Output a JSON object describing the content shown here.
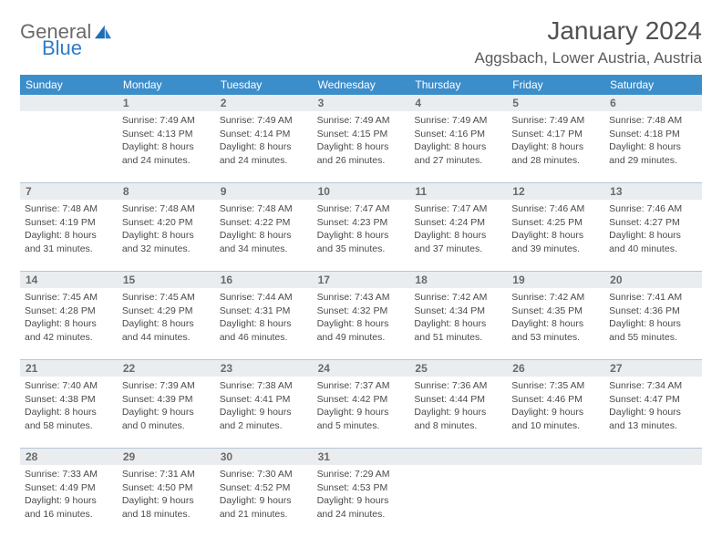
{
  "brand": {
    "name_part1": "General",
    "name_part2": "Blue"
  },
  "title": "January 2024",
  "location": "Aggsbach, Lower Austria, Austria",
  "colors": {
    "header_bg": "#3c8ecb",
    "header_text": "#ffffff",
    "daynum_bg": "#e9edf0",
    "daynum_text": "#6a6a6a",
    "body_text": "#4a4a4a",
    "title_text": "#515151",
    "divider": "#b8c6d4",
    "logo_gray": "#6a6a6a",
    "logo_blue": "#2d7ccb"
  },
  "typography": {
    "body_fontsize_pt": 8,
    "daynum_fontsize_pt": 9,
    "dow_fontsize_pt": 9,
    "title_fontsize_pt": 21,
    "location_fontsize_pt": 13
  },
  "dow": [
    "Sunday",
    "Monday",
    "Tuesday",
    "Wednesday",
    "Thursday",
    "Friday",
    "Saturday"
  ],
  "weeks": [
    [
      {
        "n": "",
        "lines": []
      },
      {
        "n": "1",
        "lines": [
          "Sunrise: 7:49 AM",
          "Sunset: 4:13 PM",
          "Daylight: 8 hours",
          "and 24 minutes."
        ]
      },
      {
        "n": "2",
        "lines": [
          "Sunrise: 7:49 AM",
          "Sunset: 4:14 PM",
          "Daylight: 8 hours",
          "and 24 minutes."
        ]
      },
      {
        "n": "3",
        "lines": [
          "Sunrise: 7:49 AM",
          "Sunset: 4:15 PM",
          "Daylight: 8 hours",
          "and 26 minutes."
        ]
      },
      {
        "n": "4",
        "lines": [
          "Sunrise: 7:49 AM",
          "Sunset: 4:16 PM",
          "Daylight: 8 hours",
          "and 27 minutes."
        ]
      },
      {
        "n": "5",
        "lines": [
          "Sunrise: 7:49 AM",
          "Sunset: 4:17 PM",
          "Daylight: 8 hours",
          "and 28 minutes."
        ]
      },
      {
        "n": "6",
        "lines": [
          "Sunrise: 7:48 AM",
          "Sunset: 4:18 PM",
          "Daylight: 8 hours",
          "and 29 minutes."
        ]
      }
    ],
    [
      {
        "n": "7",
        "lines": [
          "Sunrise: 7:48 AM",
          "Sunset: 4:19 PM",
          "Daylight: 8 hours",
          "and 31 minutes."
        ]
      },
      {
        "n": "8",
        "lines": [
          "Sunrise: 7:48 AM",
          "Sunset: 4:20 PM",
          "Daylight: 8 hours",
          "and 32 minutes."
        ]
      },
      {
        "n": "9",
        "lines": [
          "Sunrise: 7:48 AM",
          "Sunset: 4:22 PM",
          "Daylight: 8 hours",
          "and 34 minutes."
        ]
      },
      {
        "n": "10",
        "lines": [
          "Sunrise: 7:47 AM",
          "Sunset: 4:23 PM",
          "Daylight: 8 hours",
          "and 35 minutes."
        ]
      },
      {
        "n": "11",
        "lines": [
          "Sunrise: 7:47 AM",
          "Sunset: 4:24 PM",
          "Daylight: 8 hours",
          "and 37 minutes."
        ]
      },
      {
        "n": "12",
        "lines": [
          "Sunrise: 7:46 AM",
          "Sunset: 4:25 PM",
          "Daylight: 8 hours",
          "and 39 minutes."
        ]
      },
      {
        "n": "13",
        "lines": [
          "Sunrise: 7:46 AM",
          "Sunset: 4:27 PM",
          "Daylight: 8 hours",
          "and 40 minutes."
        ]
      }
    ],
    [
      {
        "n": "14",
        "lines": [
          "Sunrise: 7:45 AM",
          "Sunset: 4:28 PM",
          "Daylight: 8 hours",
          "and 42 minutes."
        ]
      },
      {
        "n": "15",
        "lines": [
          "Sunrise: 7:45 AM",
          "Sunset: 4:29 PM",
          "Daylight: 8 hours",
          "and 44 minutes."
        ]
      },
      {
        "n": "16",
        "lines": [
          "Sunrise: 7:44 AM",
          "Sunset: 4:31 PM",
          "Daylight: 8 hours",
          "and 46 minutes."
        ]
      },
      {
        "n": "17",
        "lines": [
          "Sunrise: 7:43 AM",
          "Sunset: 4:32 PM",
          "Daylight: 8 hours",
          "and 49 minutes."
        ]
      },
      {
        "n": "18",
        "lines": [
          "Sunrise: 7:42 AM",
          "Sunset: 4:34 PM",
          "Daylight: 8 hours",
          "and 51 minutes."
        ]
      },
      {
        "n": "19",
        "lines": [
          "Sunrise: 7:42 AM",
          "Sunset: 4:35 PM",
          "Daylight: 8 hours",
          "and 53 minutes."
        ]
      },
      {
        "n": "20",
        "lines": [
          "Sunrise: 7:41 AM",
          "Sunset: 4:36 PM",
          "Daylight: 8 hours",
          "and 55 minutes."
        ]
      }
    ],
    [
      {
        "n": "21",
        "lines": [
          "Sunrise: 7:40 AM",
          "Sunset: 4:38 PM",
          "Daylight: 8 hours",
          "and 58 minutes."
        ]
      },
      {
        "n": "22",
        "lines": [
          "Sunrise: 7:39 AM",
          "Sunset: 4:39 PM",
          "Daylight: 9 hours",
          "and 0 minutes."
        ]
      },
      {
        "n": "23",
        "lines": [
          "Sunrise: 7:38 AM",
          "Sunset: 4:41 PM",
          "Daylight: 9 hours",
          "and 2 minutes."
        ]
      },
      {
        "n": "24",
        "lines": [
          "Sunrise: 7:37 AM",
          "Sunset: 4:42 PM",
          "Daylight: 9 hours",
          "and 5 minutes."
        ]
      },
      {
        "n": "25",
        "lines": [
          "Sunrise: 7:36 AM",
          "Sunset: 4:44 PM",
          "Daylight: 9 hours",
          "and 8 minutes."
        ]
      },
      {
        "n": "26",
        "lines": [
          "Sunrise: 7:35 AM",
          "Sunset: 4:46 PM",
          "Daylight: 9 hours",
          "and 10 minutes."
        ]
      },
      {
        "n": "27",
        "lines": [
          "Sunrise: 7:34 AM",
          "Sunset: 4:47 PM",
          "Daylight: 9 hours",
          "and 13 minutes."
        ]
      }
    ],
    [
      {
        "n": "28",
        "lines": [
          "Sunrise: 7:33 AM",
          "Sunset: 4:49 PM",
          "Daylight: 9 hours",
          "and 16 minutes."
        ]
      },
      {
        "n": "29",
        "lines": [
          "Sunrise: 7:31 AM",
          "Sunset: 4:50 PM",
          "Daylight: 9 hours",
          "and 18 minutes."
        ]
      },
      {
        "n": "30",
        "lines": [
          "Sunrise: 7:30 AM",
          "Sunset: 4:52 PM",
          "Daylight: 9 hours",
          "and 21 minutes."
        ]
      },
      {
        "n": "31",
        "lines": [
          "Sunrise: 7:29 AM",
          "Sunset: 4:53 PM",
          "Daylight: 9 hours",
          "and 24 minutes."
        ]
      },
      {
        "n": "",
        "lines": []
      },
      {
        "n": "",
        "lines": []
      },
      {
        "n": "",
        "lines": []
      }
    ]
  ]
}
